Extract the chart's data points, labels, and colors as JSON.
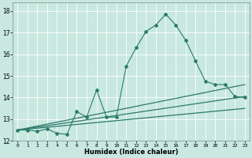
{
  "xlabel": "Humidex (Indice chaleur)",
  "xlim": [
    -0.5,
    23.5
  ],
  "ylim": [
    12,
    18.4
  ],
  "yticks": [
    12,
    13,
    14,
    15,
    16,
    17,
    18
  ],
  "xticks": [
    0,
    1,
    2,
    3,
    4,
    5,
    6,
    7,
    8,
    9,
    10,
    11,
    12,
    13,
    14,
    15,
    16,
    17,
    18,
    19,
    20,
    21,
    22,
    23
  ],
  "bg_color": "#c8e8e0",
  "grid_color": "#ffffff",
  "line_color": "#2d7a6a",
  "series_main": {
    "x": [
      0,
      1,
      2,
      3,
      4,
      5,
      6,
      7,
      8,
      9,
      10,
      11,
      12,
      13,
      14,
      15,
      16,
      17,
      18,
      19,
      20,
      21,
      22,
      23
    ],
    "y": [
      12.5,
      12.5,
      12.45,
      12.55,
      12.35,
      12.3,
      13.35,
      13.1,
      14.35,
      13.1,
      13.1,
      15.45,
      16.3,
      17.05,
      17.35,
      17.85,
      17.35,
      16.65,
      15.7,
      14.75,
      14.6,
      14.6,
      14.05,
      14.0
    ]
  },
  "series_upper": {
    "x": [
      0,
      23
    ],
    "y": [
      12.5,
      14.6
    ]
  },
  "series_mid": {
    "x": [
      0,
      23
    ],
    "y": [
      12.5,
      14.05
    ]
  },
  "series_lower": {
    "x": [
      0,
      23
    ],
    "y": [
      12.5,
      13.5
    ]
  }
}
